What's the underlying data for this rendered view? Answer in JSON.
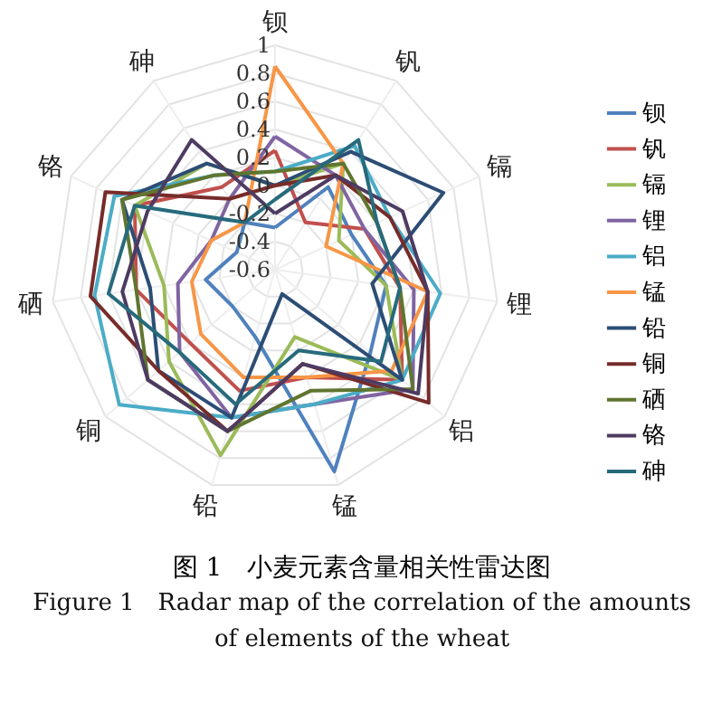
{
  "chart_data": {
    "type": "radar",
    "title": "图 1　小麦元素含量相关性雷达图",
    "subtitle": "Figure 1　Radar map of the correlation of the amounts of elements of the wheat",
    "categories": [
      "钡",
      "钒",
      "镉",
      "锂",
      "铝",
      "锰",
      "铅",
      "铜",
      "硒",
      "铬",
      "砷"
    ],
    "ylim": [
      -0.6,
      1
    ],
    "yticks": [
      -0.6,
      -0.4,
      -0.2,
      0,
      0.2,
      0.4,
      0.6,
      0.8,
      1
    ],
    "grid": true,
    "legend": "right",
    "marker": "none",
    "series": [
      {
        "name": "钡",
        "color": "#4f81bd",
        "values": [
          -0.3,
          0.1,
          0.0,
          0.2,
          0.3,
          0.9,
          -0.1,
          -0.2,
          -0.1,
          -0.3,
          -0.2
        ]
      },
      {
        "name": "钒",
        "color": "#c0504d",
        "values": [
          0.25,
          -0.2,
          0.1,
          0.3,
          0.6,
          0.2,
          0.3,
          0.2,
          0.4,
          0.5,
          0.1
        ]
      },
      {
        "name": "镉",
        "color": "#9bbb59",
        "values": [
          0.0,
          0.3,
          -0.1,
          0.2,
          0.6,
          -0.1,
          0.78,
          0.4,
          0.2,
          0.5,
          0.3
        ]
      },
      {
        "name": "锂",
        "color": "#8064a2",
        "values": [
          0.35,
          0.2,
          0.1,
          0.4,
          0.7,
          0.4,
          0.5,
          0.3,
          0.1,
          -0.1,
          0.0
        ]
      },
      {
        "name": "铝",
        "color": "#4bacc6",
        "values": [
          0.1,
          0.45,
          0.3,
          0.59,
          0.6,
          0.4,
          0.5,
          0.87,
          0.7,
          0.66,
          0.2
        ]
      },
      {
        "name": "锰",
        "color": "#f79646",
        "values": [
          0.85,
          0.3,
          -0.2,
          0.5,
          0.5,
          0.2,
          0.2,
          0.1,
          0.0,
          -0.1,
          -0.2
        ]
      },
      {
        "name": "铅",
        "color": "#2c4d75",
        "values": [
          0.0,
          0.4,
          0.72,
          0.1,
          0.6,
          -0.42,
          0.5,
          0.5,
          0.3,
          0.6,
          0.3
        ]
      },
      {
        "name": "铜",
        "color": "#772c2a",
        "values": [
          0.0,
          0.2,
          0.3,
          0.5,
          0.85,
          0.1,
          0.6,
          0.5,
          0.73,
          0.73,
          0.0
        ]
      },
      {
        "name": "硒",
        "color": "#5f7530",
        "values": [
          0.1,
          0.3,
          0.2,
          0.3,
          0.7,
          0.3,
          0.6,
          0.6,
          0.4,
          0.6,
          0.2
        ]
      },
      {
        "name": "铬",
        "color": "#4d3b62",
        "values": [
          -0.2,
          0.2,
          0.4,
          0.5,
          0.75,
          0.1,
          0.6,
          0.6,
          0.5,
          0.4,
          0.5
        ]
      },
      {
        "name": "砷",
        "color": "#276a7c",
        "values": [
          -0.1,
          0.5,
          0.2,
          0.3,
          0.4,
          0.0,
          0.4,
          0.3,
          0.6,
          0.5,
          -0.2
        ]
      }
    ]
  }
}
